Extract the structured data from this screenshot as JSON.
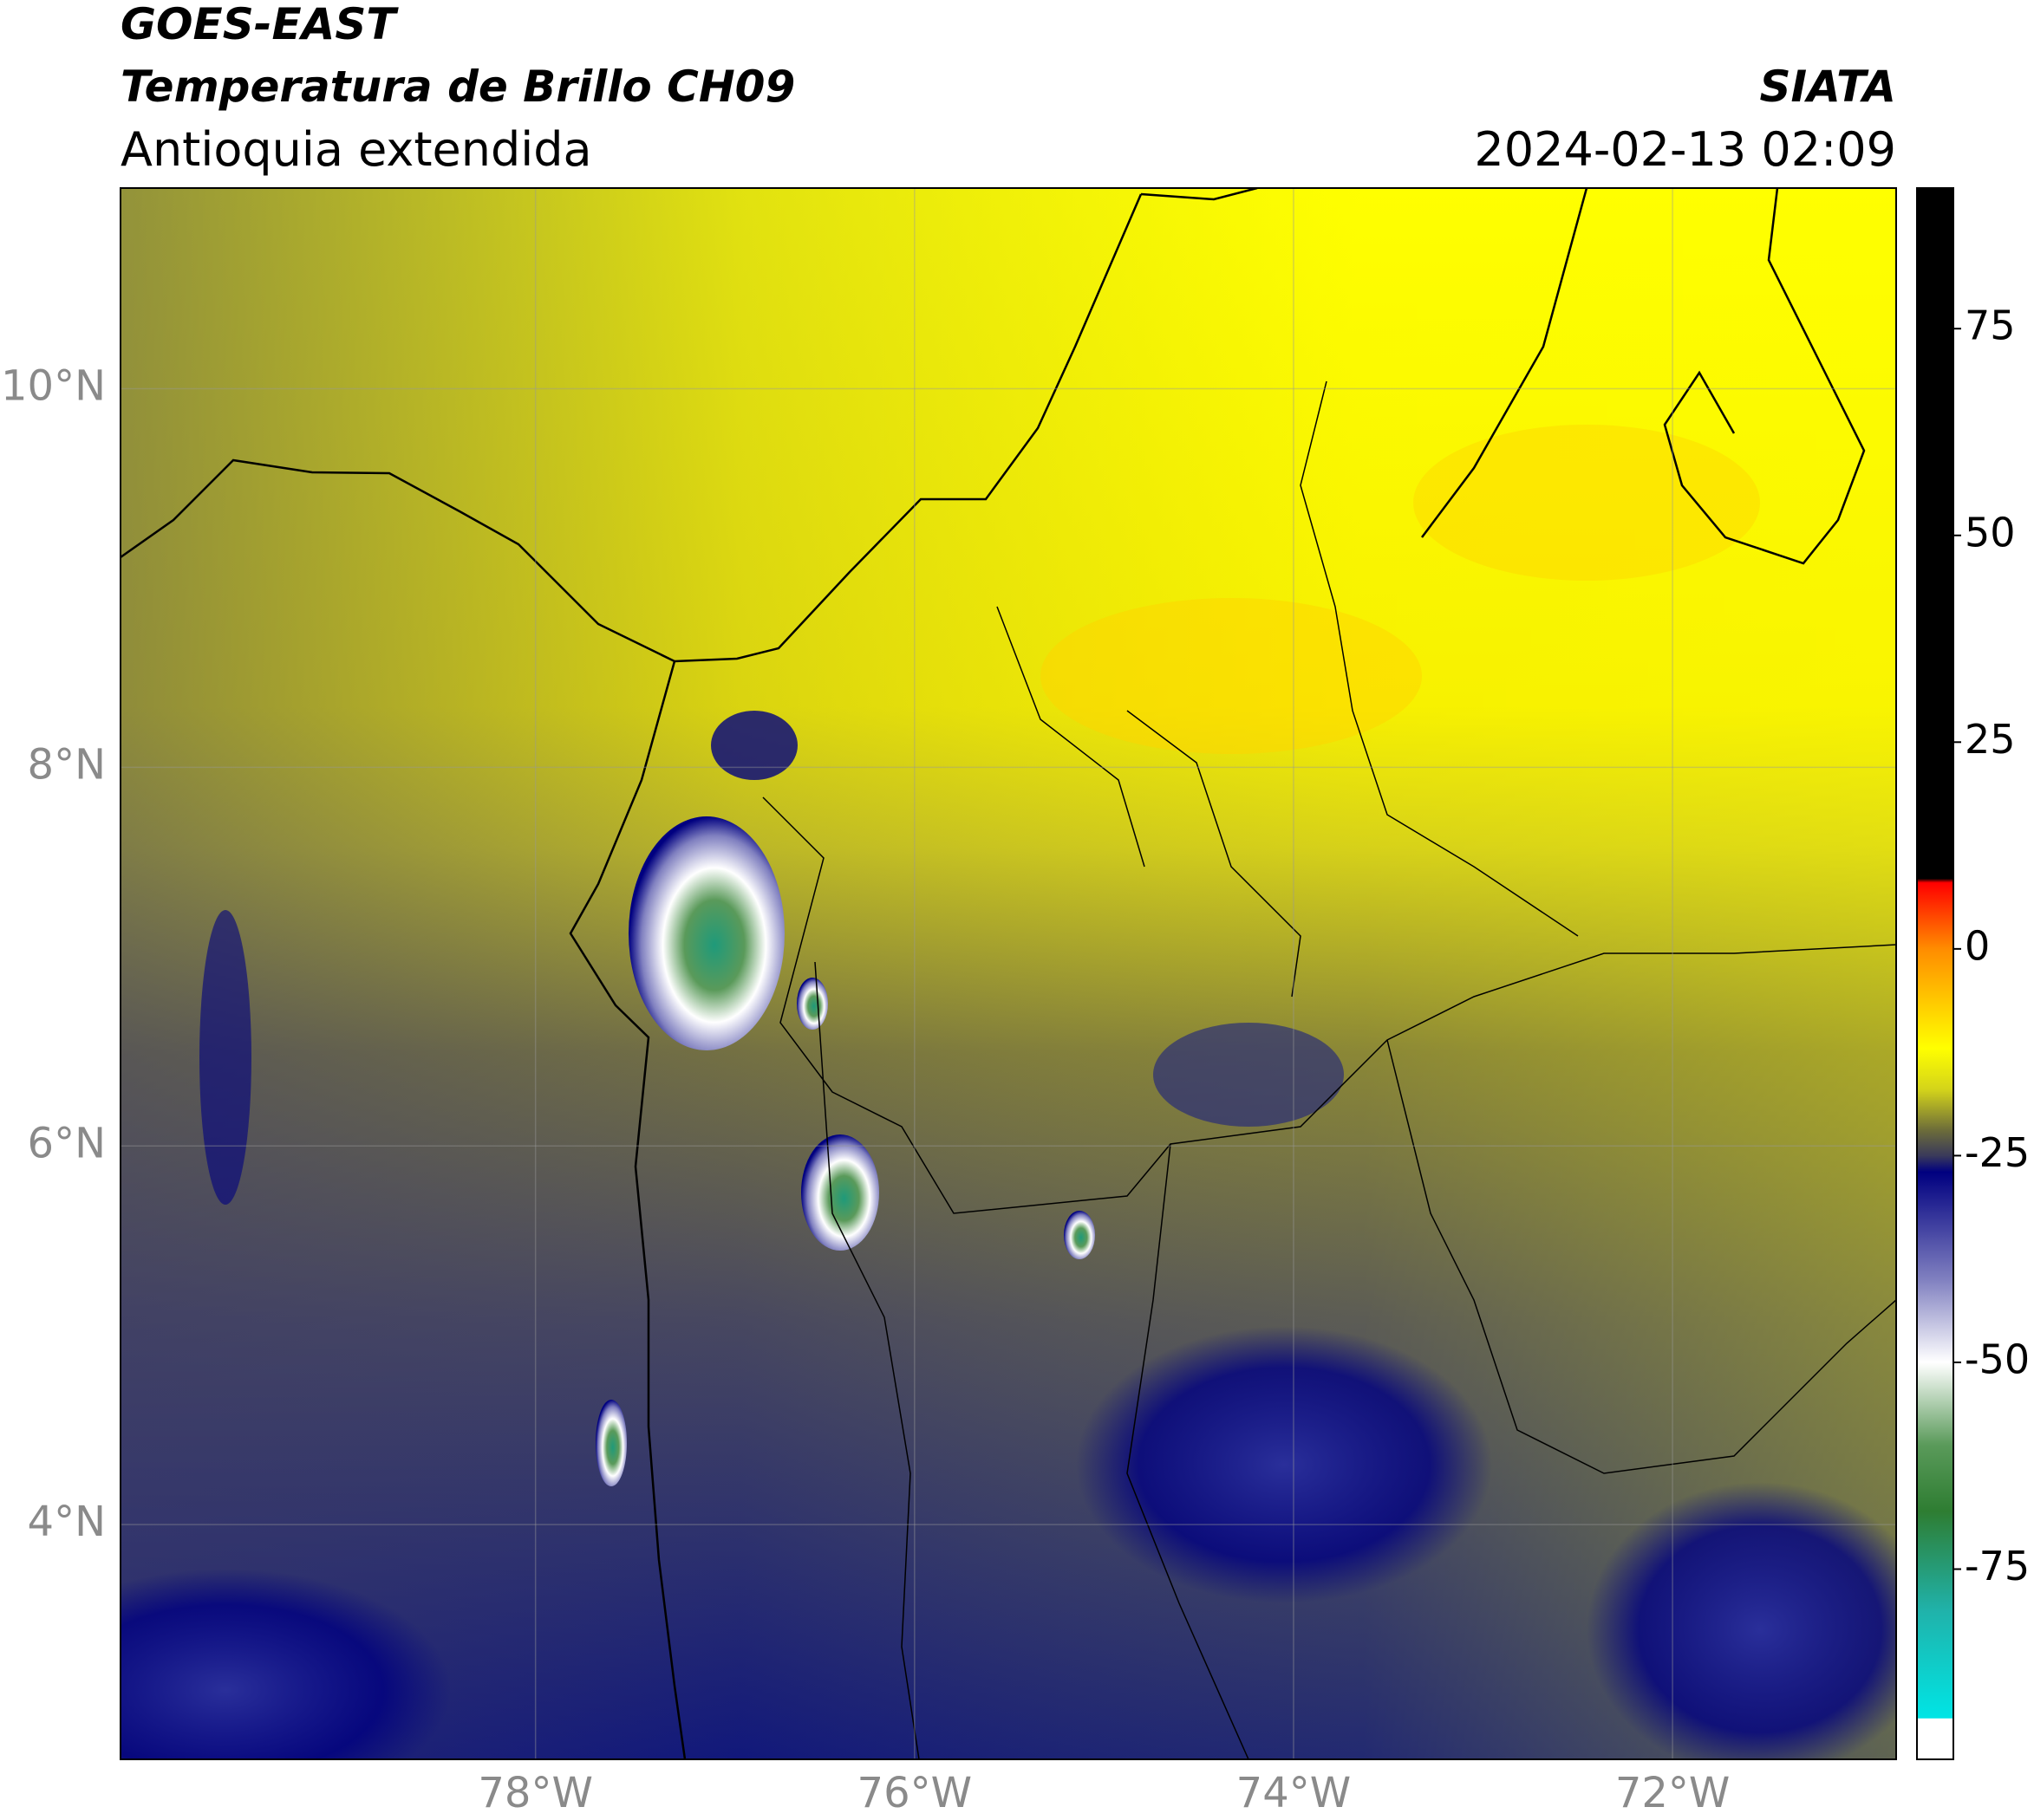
{
  "chart_data": {
    "type": "map",
    "title": "GOES-EAST",
    "subtitle": "Temperatura de Brillo CH09",
    "region": "Antioquia extendida",
    "source": "SIATA",
    "timestamp": "2024-02-13 02:09",
    "xlim": [
      -80.19,
      -70.82
    ],
    "ylim": [
      2.76,
      11.06
    ],
    "xticks": [
      {
        "value": -78,
        "label": "78°W"
      },
      {
        "value": -76,
        "label": "76°W"
      },
      {
        "value": -74,
        "label": "74°W"
      },
      {
        "value": -72,
        "label": "72°W"
      }
    ],
    "yticks": [
      {
        "value": 4,
        "label": "4°N"
      },
      {
        "value": 6,
        "label": "6°N"
      },
      {
        "value": 8,
        "label": "8°N"
      },
      {
        "value": 10,
        "label": "10°N"
      }
    ],
    "grid": true,
    "colorbar": {
      "lim": [
        -98,
        92
      ],
      "ticks": [
        75,
        50,
        25,
        0,
        -25,
        -50,
        -75
      ],
      "stops": [
        {
          "value": 92,
          "color": "#000000"
        },
        {
          "value": 8.5,
          "color": "#000000"
        },
        {
          "value": 8,
          "color": "#ff0000"
        },
        {
          "value": 0,
          "color": "#ff8c00"
        },
        {
          "value": -12,
          "color": "#ffff00"
        },
        {
          "value": -17,
          "color": "#d4d41a"
        },
        {
          "value": -22,
          "color": "#6b6b3a"
        },
        {
          "value": -25,
          "color": "#3a3a5a"
        },
        {
          "value": -27,
          "color": "#000080"
        },
        {
          "value": -40,
          "color": "#8080c0"
        },
        {
          "value": -50,
          "color": "#ffffff"
        },
        {
          "value": -60,
          "color": "#5a9a5a"
        },
        {
          "value": -68,
          "color": "#2e7d32"
        },
        {
          "value": -80,
          "color": "#20b2aa"
        },
        {
          "value": -93,
          "color": "#00e5e5"
        },
        {
          "value": -93.1,
          "color": "#ffffff"
        },
        {
          "value": -98,
          "color": "#ffffff"
        }
      ]
    }
  }
}
